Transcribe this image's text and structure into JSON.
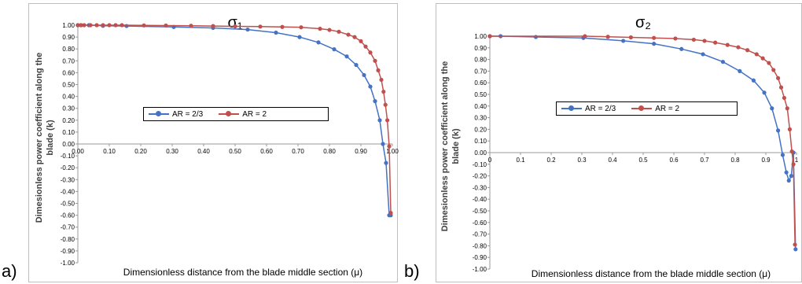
{
  "panels": {
    "a": {
      "letter": "a)"
    },
    "b": {
      "letter": "b)"
    }
  },
  "chart_data": [
    {
      "type": "line",
      "title": "σ₁",
      "xlabel": "Dimensionless distance from the blade middle section (μ)",
      "ylabel": "Dimesionless power coefficient along the blade (k)",
      "xlim": [
        0,
        1
      ],
      "ylim": [
        -1,
        1
      ],
      "x_ticks": [
        "0.00",
        "0.10",
        "0.20",
        "0.30",
        "0.40",
        "0.50",
        "0.60",
        "0.70",
        "0.80",
        "0.90",
        "1.00"
      ],
      "y_ticks": [
        "1.00",
        "0.90",
        "0.80",
        "0.70",
        "0.60",
        "0.50",
        "0.40",
        "0.30",
        "0.20",
        "0.10",
        "0.00",
        "-0.10",
        "-0.20",
        "-0.30",
        "-0.40",
        "-0.50",
        "-0.60",
        "-0.70",
        "-0.80",
        "-0.90",
        "-1.00"
      ],
      "grid": false,
      "legend_position": "center",
      "series": [
        {
          "name": "AR = 2/3",
          "color": "#4472c4",
          "x": [
            0,
            0.01,
            0.035,
            0.08,
            0.155,
            0.305,
            0.43,
            0.54,
            0.63,
            0.705,
            0.765,
            0.815,
            0.855,
            0.885,
            0.91,
            0.93,
            0.945,
            0.96,
            0.97,
            0.98,
            0.99,
            0.995
          ],
          "y": [
            1.0,
            1.0,
            1.0,
            0.995,
            0.993,
            0.985,
            0.977,
            0.963,
            0.937,
            0.9,
            0.855,
            0.797,
            0.737,
            0.665,
            0.58,
            0.483,
            0.36,
            0.2,
            0.0,
            -0.16,
            -0.6,
            -0.6
          ]
        },
        {
          "name": "AR = 2",
          "color": "#c0504d",
          "x": [
            0,
            0.01,
            0.02,
            0.04,
            0.06,
            0.08,
            0.1,
            0.12,
            0.14,
            0.21,
            0.28,
            0.36,
            0.43,
            0.5,
            0.58,
            0.65,
            0.71,
            0.77,
            0.8,
            0.83,
            0.86,
            0.88,
            0.9,
            0.915,
            0.93,
            0.945,
            0.955,
            0.965,
            0.972,
            0.978,
            0.984,
            0.99,
            0.995
          ],
          "y": [
            1.0,
            1.0,
            1.0,
            1.0,
            1.0,
            1.0,
            1.0,
            1.0,
            1.0,
            0.998,
            0.997,
            0.995,
            0.993,
            0.99,
            0.988,
            0.985,
            0.982,
            0.97,
            0.96,
            0.945,
            0.92,
            0.9,
            0.865,
            0.82,
            0.77,
            0.7,
            0.62,
            0.54,
            0.44,
            0.33,
            0.2,
            -0.02,
            -0.58
          ]
        }
      ]
    },
    {
      "type": "line",
      "title": "σ₂",
      "xlabel": "Dimensionless distance from the blade middle section (μ)",
      "ylabel": "Dimesionless power coefficient along the blade (k)",
      "xlim": [
        0,
        1
      ],
      "ylim": [
        -1,
        1
      ],
      "x_ticks": [
        "0",
        "0.1",
        "0.2",
        "0.3",
        "0.4",
        "0.5",
        "0.6",
        "0.7",
        "0.8",
        "0.9",
        "1"
      ],
      "y_ticks": [
        "1.00",
        "0.90",
        "0.80",
        "0.70",
        "0.60",
        "0.50",
        "0.40",
        "0.30",
        "0.20",
        "0.10",
        "0.00",
        "-0.10",
        "-0.20",
        "-0.30",
        "-0.40",
        "-0.50",
        "-0.60",
        "-0.70",
        "-0.80",
        "-0.90",
        "-1.00"
      ],
      "grid": false,
      "legend_position": "center",
      "series": [
        {
          "name": "AR = 2/3",
          "color": "#4472c4",
          "x": [
            0,
            0.035,
            0.15,
            0.305,
            0.435,
            0.535,
            0.625,
            0.695,
            0.76,
            0.815,
            0.86,
            0.895,
            0.92,
            0.94,
            0.955,
            0.967,
            0.975,
            0.983,
            0.99,
            0.997
          ],
          "y": [
            1.0,
            1.0,
            0.993,
            0.985,
            0.96,
            0.935,
            0.89,
            0.845,
            0.78,
            0.7,
            0.62,
            0.515,
            0.38,
            0.19,
            -0.02,
            -0.17,
            -0.24,
            -0.2,
            0.0,
            -0.83
          ]
        },
        {
          "name": "AR = 2",
          "color": "#c0504d",
          "x": [
            0,
            0.31,
            0.385,
            0.46,
            0.535,
            0.605,
            0.665,
            0.7,
            0.735,
            0.775,
            0.81,
            0.84,
            0.87,
            0.89,
            0.91,
            0.925,
            0.94,
            0.95,
            0.96,
            0.97,
            0.978,
            0.985,
            0.99,
            0.995
          ],
          "y": [
            1.0,
            1.0,
            0.995,
            0.99,
            0.985,
            0.98,
            0.97,
            0.96,
            0.945,
            0.925,
            0.905,
            0.88,
            0.845,
            0.81,
            0.77,
            0.71,
            0.64,
            0.56,
            0.47,
            0.38,
            0.2,
            0.01,
            -0.1,
            -0.79
          ]
        }
      ]
    }
  ]
}
